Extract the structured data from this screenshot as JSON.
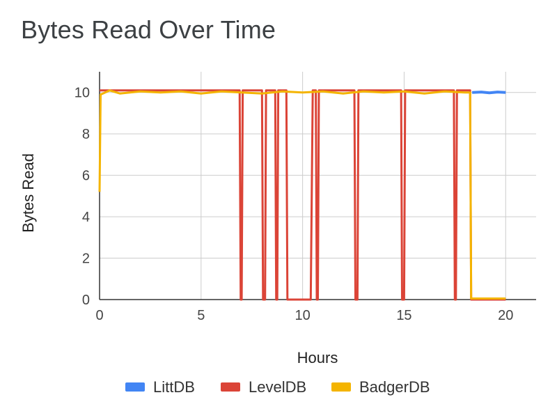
{
  "chart_data": {
    "type": "line",
    "title": "Bytes Read Over Time",
    "xlabel": "Hours",
    "ylabel": "Bytes Read",
    "xlim": [
      0,
      21.5
    ],
    "ylim": [
      0,
      11
    ],
    "xticks": [
      0,
      5,
      10,
      15,
      20
    ],
    "yticks": [
      0,
      2,
      4,
      6,
      8,
      10
    ],
    "grid": true,
    "legend_position": "bottom",
    "series": [
      {
        "name": "LittDB",
        "color": "#4285f4",
        "points": [
          [
            18.35,
            10.0
          ],
          [
            18.8,
            10.02
          ],
          [
            19.2,
            9.98
          ],
          [
            19.6,
            10.02
          ],
          [
            20.0,
            10.0
          ]
        ]
      },
      {
        "name": "LevelDB",
        "color": "#db4437",
        "points": [
          [
            0.0,
            10.1
          ],
          [
            6.9,
            10.1
          ],
          [
            6.95,
            0
          ],
          [
            7.0,
            0
          ],
          [
            7.05,
            10.1
          ],
          [
            8.0,
            10.1
          ],
          [
            8.05,
            0
          ],
          [
            8.15,
            0
          ],
          [
            8.2,
            10.1
          ],
          [
            8.65,
            10.1
          ],
          [
            8.7,
            0
          ],
          [
            8.75,
            0
          ],
          [
            8.8,
            10.1
          ],
          [
            9.2,
            10.1
          ],
          [
            9.25,
            0
          ],
          [
            10.4,
            0
          ],
          [
            10.5,
            10.1
          ],
          [
            10.65,
            10.1
          ],
          [
            10.7,
            0
          ],
          [
            10.75,
            0
          ],
          [
            10.8,
            10.1
          ],
          [
            12.55,
            10.1
          ],
          [
            12.6,
            0
          ],
          [
            12.7,
            0
          ],
          [
            12.75,
            10.1
          ],
          [
            14.85,
            10.1
          ],
          [
            14.9,
            0
          ],
          [
            15.0,
            0
          ],
          [
            15.05,
            10.1
          ],
          [
            17.45,
            10.1
          ],
          [
            17.5,
            0
          ],
          [
            17.55,
            0
          ],
          [
            17.6,
            10.1
          ],
          [
            18.25,
            10.1
          ],
          [
            18.3,
            0
          ],
          [
            20.0,
            0
          ]
        ]
      },
      {
        "name": "BadgerDB",
        "color": "#f4b400",
        "points": [
          [
            0.0,
            5.2
          ],
          [
            0.05,
            9.9
          ],
          [
            0.5,
            10.1
          ],
          [
            1.0,
            9.95
          ],
          [
            2.0,
            10.05
          ],
          [
            3.0,
            10.0
          ],
          [
            4.0,
            10.05
          ],
          [
            5.0,
            9.95
          ],
          [
            6.0,
            10.05
          ],
          [
            7.0,
            10.0
          ],
          [
            8.0,
            9.95
          ],
          [
            9.0,
            10.05
          ],
          [
            10.0,
            10.0
          ],
          [
            11.0,
            10.05
          ],
          [
            12.0,
            9.95
          ],
          [
            13.0,
            10.05
          ],
          [
            14.0,
            10.0
          ],
          [
            15.0,
            10.05
          ],
          [
            16.0,
            9.95
          ],
          [
            17.0,
            10.05
          ],
          [
            18.0,
            10.0
          ],
          [
            18.25,
            10.0
          ],
          [
            18.3,
            0.05
          ],
          [
            20.0,
            0.05
          ]
        ]
      }
    ]
  }
}
